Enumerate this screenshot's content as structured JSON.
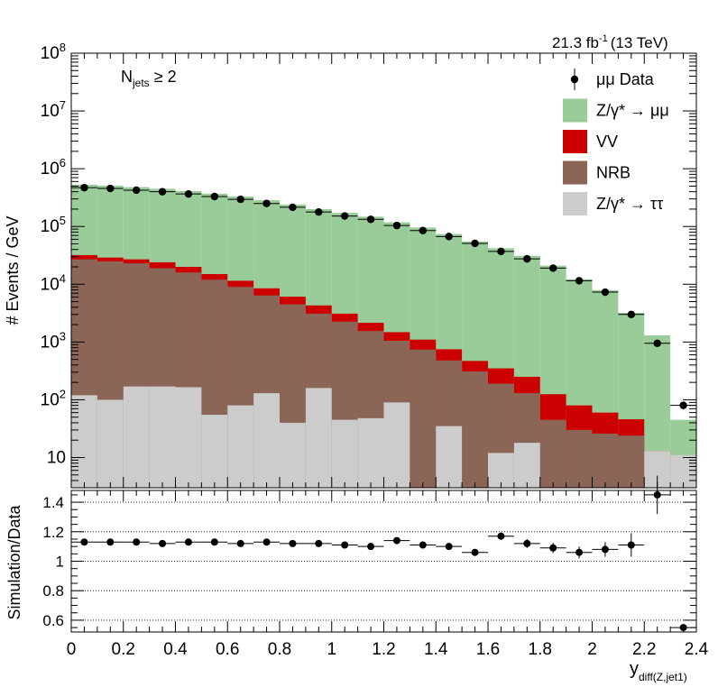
{
  "chart_data": {
    "type": "bar",
    "stacked": true,
    "luminosity_label": "21.3 fb",
    "luminosity_exponent": "-1",
    "energy_label": "(13 TeV)",
    "selection_main": "N",
    "selection_sub": "jets",
    "selection_rest": " ≥ 2",
    "ylabel": "# Events / GeV",
    "ratio_ylabel": "Simulation/Data",
    "xlabel_main": "y",
    "xlabel_sub": "diff(Z,jet1)",
    "xlim": [
      0,
      2.4
    ],
    "ylim_log": [
      3,
      100000000
    ],
    "ratio_ylim": [
      0.52,
      1.48
    ],
    "x_ticks": [
      0,
      0.2,
      0.4,
      0.6,
      0.8,
      1,
      1.2,
      1.4,
      1.6,
      1.8,
      2,
      2.2,
      2.4
    ],
    "x_tick_labels": [
      "0",
      "0.2",
      "0.4",
      "0.6",
      "0.8",
      "1",
      "1.2",
      "1.4",
      "1.6",
      "1.8",
      "2",
      "2.2",
      "2.4"
    ],
    "y_tick_values": [
      10,
      100,
      1000,
      10000,
      100000,
      1000000,
      10000000,
      100000000
    ],
    "y_tick_bases": [
      "10",
      "10",
      "10",
      "10",
      "10",
      "10",
      "10",
      "10"
    ],
    "y_tick_exponents": [
      "",
      "2",
      "3",
      "4",
      "5",
      "6",
      "7",
      "8"
    ],
    "ratio_ticks": [
      0.6,
      0.8,
      1.0,
      1.2,
      1.4
    ],
    "ratio_tick_labels": [
      "0.6",
      "0.8",
      "1",
      "1.2",
      "1.4"
    ],
    "ratio_gridlines": [
      0.6,
      0.8,
      1.0,
      1.2,
      1.4
    ],
    "bin_edges": [
      0,
      0.1,
      0.2,
      0.3,
      0.4,
      0.5,
      0.6,
      0.7,
      0.8,
      0.9,
      1.0,
      1.1,
      1.2,
      1.3,
      1.4,
      1.5,
      1.6,
      1.7,
      1.8,
      1.9,
      2.0,
      2.1,
      2.2,
      2.3,
      2.4
    ],
    "colors": {
      "zmumu": "#99cc99",
      "vv": "#cc0000",
      "nrb": "#8b6656",
      "ztautau": "#cccccc",
      "data": "#000000"
    },
    "legend": [
      {
        "key": "data",
        "label": "μμ Data",
        "kind": "marker"
      },
      {
        "key": "zmumu",
        "label": "Z/γ* → μμ",
        "kind": "box"
      },
      {
        "key": "vv",
        "label": "VV",
        "kind": "box"
      },
      {
        "key": "nrb",
        "label": "NRB",
        "kind": "box"
      },
      {
        "key": "ztautau",
        "label": "Z/γ* → ττ",
        "kind": "box"
      }
    ],
    "stack_totals": {
      "ztautau": [
        120,
        100,
        170,
        170,
        165,
        55,
        80,
        130,
        40,
        160,
        45,
        48,
        90,
        0,
        35,
        0,
        12,
        18,
        0,
        0,
        0,
        0,
        13,
        11
      ],
      "nrb": [
        27000,
        25000,
        23000,
        19000,
        16000,
        12000,
        9000,
        6400,
        4500,
        3100,
        2250,
        1550,
        1050,
        740,
        480,
        310,
        190,
        130,
        45,
        30,
        26,
        24,
        11,
        0
      ],
      "vv": [
        32000,
        29000,
        27000,
        24000,
        20000,
        15000,
        11500,
        8500,
        6100,
        4300,
        3100,
        2150,
        1480,
        1100,
        750,
        470,
        350,
        250,
        125,
        80,
        60,
        46,
        13,
        0
      ],
      "zmumu": [
        530000,
        510000,
        480000,
        450000,
        410000,
        370000,
        330000,
        285000,
        240000,
        200000,
        172000,
        148000,
        118000,
        96000,
        74000,
        55000,
        42000,
        31000,
        21000,
        12200,
        7900,
        3200,
        1300,
        45
      ]
    },
    "data_points": {
      "x": [
        0.05,
        0.15,
        0.25,
        0.35,
        0.45,
        0.55,
        0.65,
        0.75,
        0.85,
        0.95,
        1.05,
        1.15,
        1.25,
        1.35,
        1.45,
        1.55,
        1.65,
        1.75,
        1.85,
        1.95,
        2.05,
        2.15,
        2.25,
        2.35
      ],
      "y": [
        470000,
        455000,
        425000,
        400000,
        365000,
        330000,
        295000,
        250000,
        215000,
        178000,
        152000,
        133000,
        104000,
        85000,
        67000,
        51000,
        37000,
        27500,
        19000,
        11500,
        7300,
        3000,
        950,
        80
      ],
      "yerr_rel": [
        0.002,
        0.002,
        0.002,
        0.002,
        0.002,
        0.002,
        0.002,
        0.002,
        0.003,
        0.003,
        0.003,
        0.003,
        0.003,
        0.004,
        0.004,
        0.005,
        0.006,
        0.007,
        0.008,
        0.01,
        0.012,
        0.02,
        0.035,
        0.15
      ]
    },
    "ratio": {
      "x": [
        0.05,
        0.15,
        0.25,
        0.35,
        0.45,
        0.55,
        0.65,
        0.75,
        0.85,
        0.95,
        1.05,
        1.15,
        1.25,
        1.35,
        1.45,
        1.55,
        1.65,
        1.75,
        1.85,
        1.95,
        2.05,
        2.15,
        2.25,
        2.35
      ],
      "y": [
        1.13,
        1.13,
        1.13,
        1.12,
        1.13,
        1.13,
        1.12,
        1.13,
        1.12,
        1.12,
        1.11,
        1.1,
        1.14,
        1.11,
        1.1,
        1.06,
        1.17,
        1.12,
        1.09,
        1.06,
        1.08,
        1.11,
        1.45,
        0.55
      ],
      "yerr": [
        0.005,
        0.005,
        0.005,
        0.005,
        0.005,
        0.005,
        0.005,
        0.005,
        0.005,
        0.006,
        0.006,
        0.007,
        0.008,
        0.01,
        0.012,
        0.015,
        0.025,
        0.03,
        0.035,
        0.04,
        0.05,
        0.08,
        0.13,
        0.0
      ]
    }
  }
}
